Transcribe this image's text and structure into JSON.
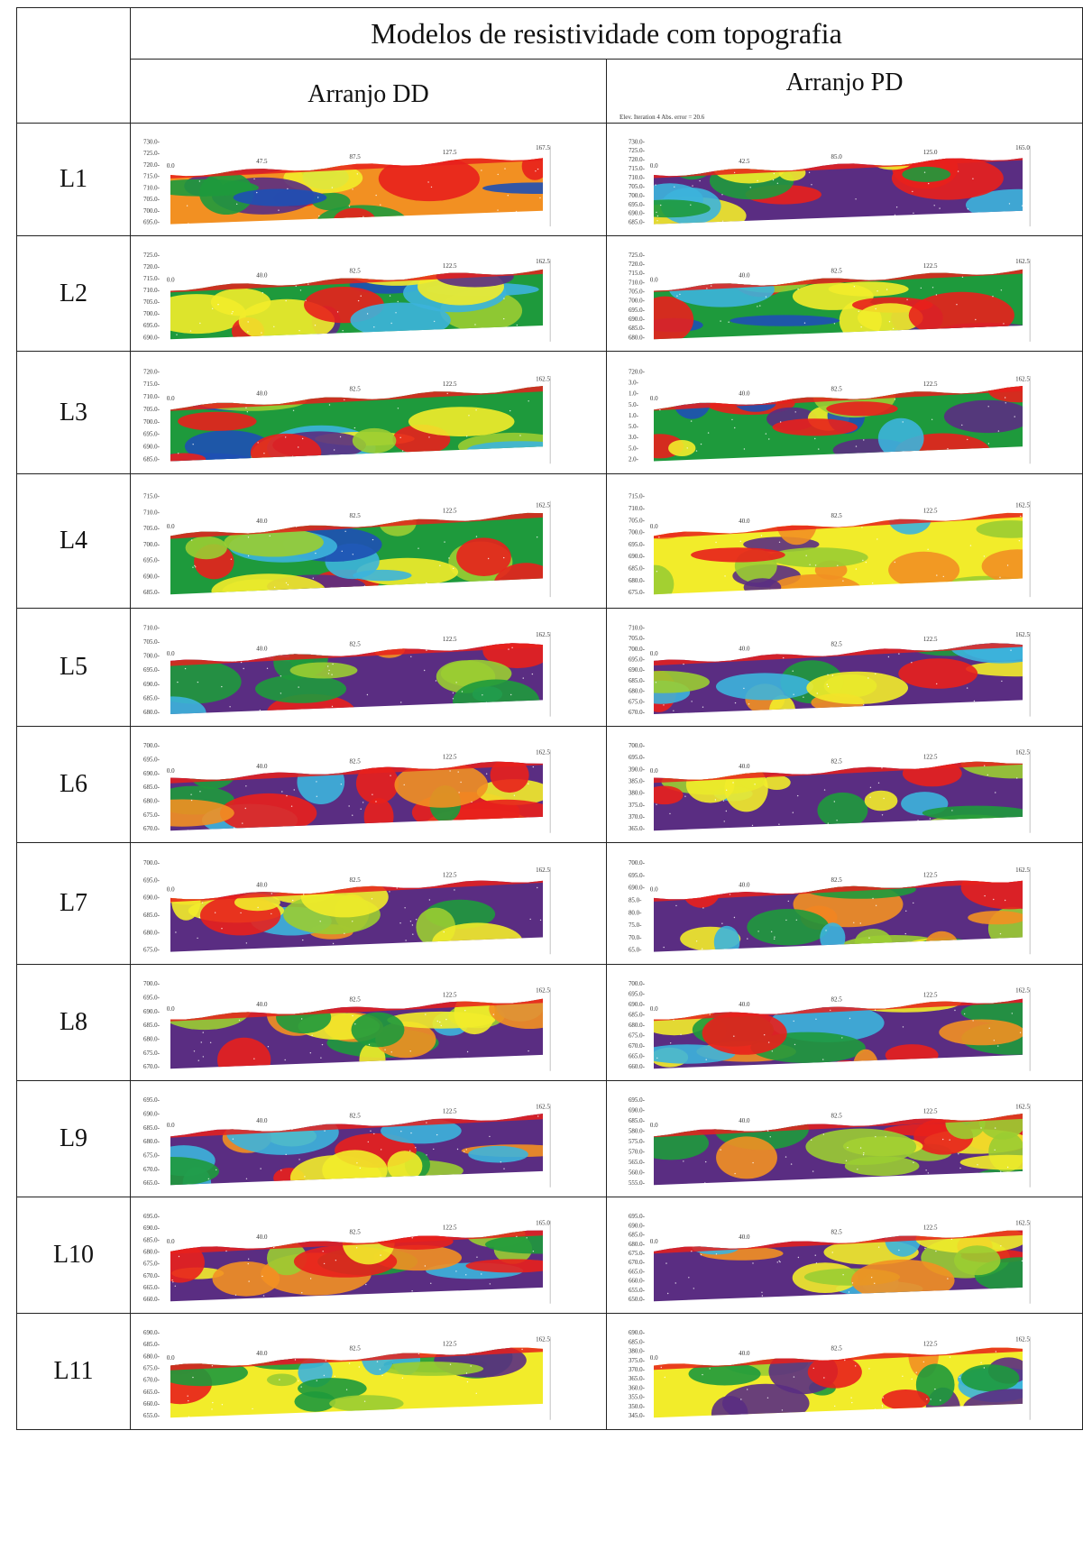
{
  "table": {
    "title": "Modelos de resistividade com topografia",
    "col_dd": "Arranjo DD",
    "col_pd": "Arranjo PD",
    "pd_header_note": "Elev.      Iteration 4 Abs. error = 20.6"
  },
  "colors": {
    "purple": "#5a2d82",
    "red": "#e8201c",
    "orange": "#f29022",
    "yellow": "#f2ec2a",
    "lightgreen": "#9acd32",
    "green": "#1e9a3c",
    "darkgreen": "#0f6e2a",
    "cyan": "#3cb4dc",
    "blue": "#1e50b4"
  },
  "rows": [
    {
      "label": "L1",
      "dd": {
        "elev": [
          "730.0",
          "725.0",
          "720.0",
          "715.0",
          "710.0",
          "705.0",
          "700.0",
          "695.0"
        ],
        "ticks": [
          "0.0",
          "47.5",
          "87.5",
          "127.5",
          "167.5"
        ],
        "theme": "blue"
      },
      "pd": {
        "elev": [
          "730.0",
          "725.0",
          "720.0",
          "715.0",
          "710.0",
          "705.0",
          "700.0",
          "695.0",
          "690.0",
          "685.0"
        ],
        "ticks": [
          "0.0",
          "42.5",
          "85.0",
          "125.0",
          "165.0"
        ],
        "theme": "mix"
      }
    },
    {
      "label": "L2",
      "dd": {
        "elev": [
          "725.0",
          "720.0",
          "715.0",
          "710.0",
          "705.0",
          "700.0",
          "695.0",
          "690.0"
        ],
        "ticks": [
          "0.0",
          "40.0",
          "82.5",
          "122.5",
          "162.5"
        ],
        "theme": "green"
      },
      "pd": {
        "elev": [
          "725.0",
          "720.0",
          "715.0",
          "710.0",
          "705.0",
          "700.0",
          "695.0",
          "690.0",
          "685.0",
          "680.0"
        ],
        "ticks": [
          "0.0",
          "40.0",
          "82.5",
          "122.5",
          "162.5"
        ],
        "theme": "green"
      }
    },
    {
      "label": "L3",
      "dd": {
        "elev": [
          "720.0",
          "715.0",
          "710.0",
          "705.0",
          "700.0",
          "695.0",
          "690.0",
          "685.0"
        ],
        "ticks": [
          "0.0",
          "40.0",
          "82.5",
          "122.5",
          "162.5"
        ],
        "theme": "cyan"
      },
      "pd": {
        "elev": [
          "720.0",
          "3.0",
          "1.0",
          "5.0",
          "1.0",
          "5.0",
          "3.0",
          "5.0",
          "2.0"
        ],
        "ticks": [
          "0.0",
          "40.0",
          "82.5",
          "122.5",
          "162.5"
        ],
        "theme": "cyan"
      }
    },
    {
      "label": "L4",
      "dd": {
        "elev": [
          "715.0",
          "710.0",
          "705.0",
          "700.0",
          "695.0",
          "690.0",
          "685.0"
        ],
        "ticks": [
          "0.0",
          "40.0",
          "82.5",
          "122.5",
          "162.5"
        ],
        "theme": "green"
      },
      "pd": {
        "elev": [
          "715.0",
          "710.0",
          "705.0",
          "700.0",
          "695.0",
          "690.0",
          "685.0",
          "680.0",
          "675.0"
        ],
        "ticks": [
          "0.0",
          "40.0",
          "82.5",
          "122.5",
          "162.5"
        ],
        "theme": "red"
      }
    },
    {
      "label": "L5",
      "dd": {
        "elev": [
          "710.0",
          "705.0",
          "700.0",
          "695.0",
          "690.0",
          "685.0",
          "680.0"
        ],
        "ticks": [
          "0.0",
          "40.0",
          "82.5",
          "122.5",
          "162.5"
        ],
        "theme": "purple"
      },
      "pd": {
        "elev": [
          "710.0",
          "705.0",
          "700.0",
          "695.0",
          "690.0",
          "685.0",
          "680.0",
          "675.0",
          "670.0"
        ],
        "ticks": [
          "0.0",
          "40.0",
          "82.5",
          "122.5",
          "162.5"
        ],
        "theme": "purple"
      }
    },
    {
      "label": "L6",
      "dd": {
        "elev": [
          "700.0",
          "695.0",
          "690.0",
          "685.0",
          "680.0",
          "675.0",
          "670.0"
        ],
        "ticks": [
          "0.0",
          "40.0",
          "82.5",
          "122.5",
          "162.5"
        ],
        "theme": "purple"
      },
      "pd": {
        "elev": [
          "700.0",
          "695.0",
          "390.0",
          "385.0",
          "380.0",
          "375.0",
          "370.0",
          "365.0"
        ],
        "ticks": [
          "0.0",
          "40.0",
          "82.5",
          "122.5",
          "162.5"
        ],
        "theme": "purple"
      }
    },
    {
      "label": "L7",
      "dd": {
        "elev": [
          "700.0",
          "695.0",
          "690.0",
          "685.0",
          "680.0",
          "675.0"
        ],
        "ticks": [
          "0.0",
          "40.0",
          "82.5",
          "122.5",
          "162.5"
        ],
        "theme": "purple"
      },
      "pd": {
        "elev": [
          "700.0",
          "695.0",
          "690.0",
          "85.0",
          "80.0",
          "75.0",
          "70.0",
          "65.0"
        ],
        "ticks": [
          "0.0",
          "40.0",
          "82.5",
          "122.5",
          "162.5"
        ],
        "theme": "purple"
      }
    },
    {
      "label": "L8",
      "dd": {
        "elev": [
          "700.0",
          "695.0",
          "690.0",
          "685.0",
          "680.0",
          "675.0",
          "670.0"
        ],
        "ticks": [
          "0.0",
          "40.0",
          "82.5",
          "122.5",
          "162.5"
        ],
        "theme": "purple"
      },
      "pd": {
        "elev": [
          "700.0",
          "695.0",
          "690.0",
          "685.0",
          "680.0",
          "675.0",
          "670.0",
          "665.0",
          "660.0"
        ],
        "ticks": [
          "0.0",
          "40.0",
          "82.5",
          "122.5",
          "162.5"
        ],
        "theme": "purple"
      }
    },
    {
      "label": "L9",
      "dd": {
        "elev": [
          "695.0",
          "690.0",
          "685.0",
          "680.0",
          "675.0",
          "670.0",
          "665.0"
        ],
        "ticks": [
          "0.0",
          "40.0",
          "82.5",
          "122.5",
          "162.5"
        ],
        "theme": "purple"
      },
      "pd": {
        "elev": [
          "695.0",
          "690.0",
          "685.0",
          "580.0",
          "575.0",
          "570.0",
          "565.0",
          "560.0",
          "555.0"
        ],
        "ticks": [
          "0.0",
          "40.0",
          "82.5",
          "122.5",
          "162.5"
        ],
        "theme": "purple"
      }
    },
    {
      "label": "L10",
      "dd": {
        "elev": [
          "695.0",
          "690.0",
          "685.0",
          "680.0",
          "675.0",
          "670.0",
          "665.0",
          "660.0"
        ],
        "ticks": [
          "0.0",
          "40.0",
          "82.5",
          "122.5",
          "165.0"
        ],
        "theme": "mix"
      },
      "pd": {
        "elev": [
          "695.0",
          "690.0",
          "685.0",
          "680.0",
          "675.0",
          "670.0",
          "665.0",
          "660.0",
          "655.0",
          "650.0"
        ],
        "ticks": [
          "0.0",
          "40.0",
          "82.5",
          "122.5",
          "162.5"
        ],
        "theme": "mix"
      }
    },
    {
      "label": "L11",
      "dd": {
        "elev": [
          "690.0",
          "685.0",
          "680.0",
          "675.0",
          "670.0",
          "665.0",
          "660.0",
          "655.0"
        ],
        "ticks": [
          "0.0",
          "40.0",
          "82.5",
          "122.5",
          "162.5"
        ],
        "theme": "red"
      },
      "pd": {
        "elev": [
          "690.0",
          "685.0",
          "380.0",
          "375.0",
          "370.0",
          "365.0",
          "360.0",
          "355.0",
          "350.0",
          "345.0"
        ],
        "ticks": [
          "0.0",
          "40.0",
          "82.5",
          "122.5",
          "162.5"
        ],
        "theme": "red"
      }
    }
  ]
}
